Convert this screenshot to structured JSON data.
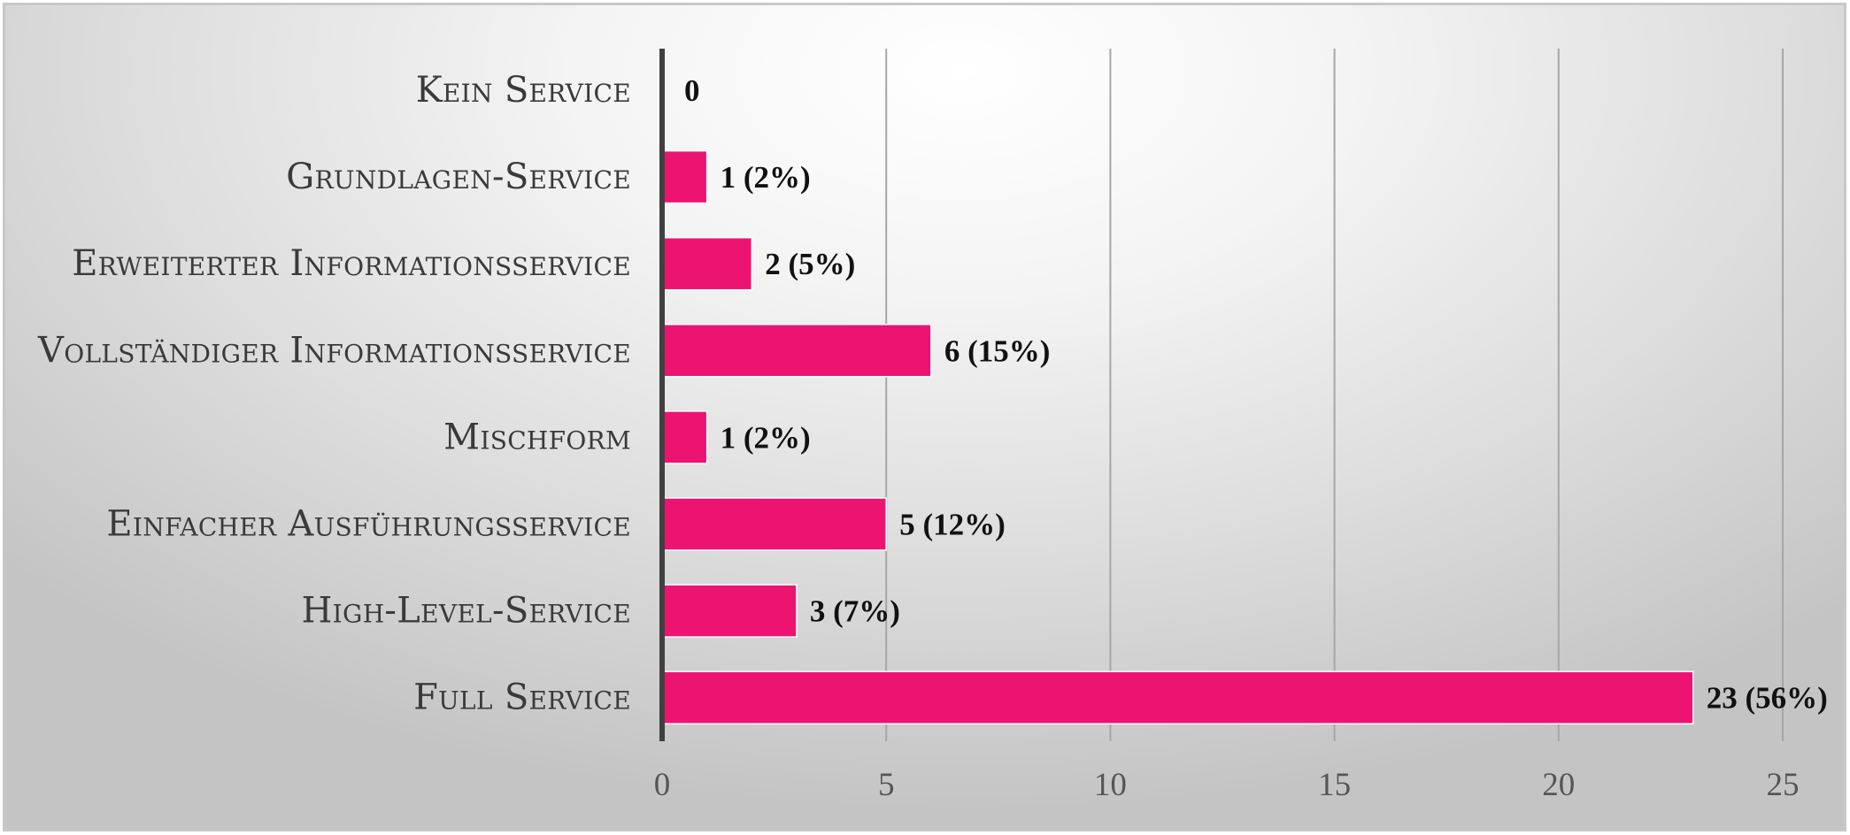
{
  "chart_data": {
    "type": "bar",
    "orientation": "horizontal",
    "categories": [
      "Kein Service",
      "Grundlagen-Service",
      "Erweiterter Informationsservice",
      "Vollständiger Informationsservice",
      "Mischform",
      "Einfacher Ausführungsservice",
      "High-Level-Service",
      "Full Service"
    ],
    "values": [
      0,
      1,
      2,
      6,
      1,
      5,
      3,
      23
    ],
    "data_labels": [
      "0",
      "1 (2%)",
      "2 (5%)",
      "6 (15%)",
      "1 (2%)",
      "5 (12%)",
      "3 (7%)",
      "23 (56%)"
    ],
    "title": "",
    "xlabel": "",
    "ylabel": "",
    "xlim": [
      0,
      25
    ],
    "xticks": [
      0,
      5,
      10,
      15,
      20,
      25
    ],
    "xtick_labels": [
      "0",
      "5",
      "10",
      "15",
      "20",
      "25"
    ],
    "grid": "vertical",
    "legend": "none",
    "bar_color": "#ed1370"
  }
}
